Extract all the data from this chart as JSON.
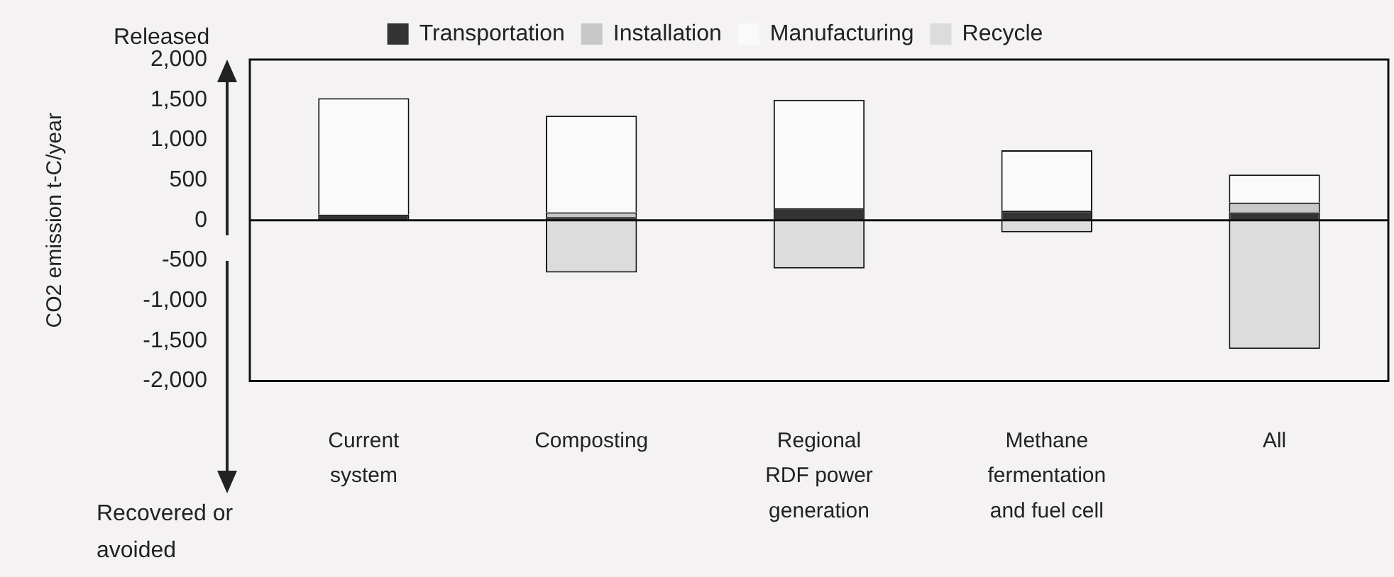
{
  "chart_data": {
    "type": "bar",
    "stacked": true,
    "ylabel": "CO2 emission t-C/year",
    "categories": [
      "Current system",
      "Composting",
      "Regional RDF power generation",
      "Methane fermentation and fuel cell",
      "All"
    ],
    "series": [
      {
        "name": "Transportation",
        "color": "#333333",
        "values": [
          70,
          40,
          150,
          120,
          100
        ]
      },
      {
        "name": "Installation",
        "color": "#c8c8c8",
        "values": [
          0,
          60,
          0,
          0,
          120
        ]
      },
      {
        "name": "Manufacturing",
        "color": "#fafafa",
        "values": [
          1450,
          1200,
          1350,
          750,
          350
        ]
      },
      {
        "name": "Recycle",
        "color": "#dcdcdc",
        "values": [
          0,
          -650,
          -600,
          -150,
          -1600
        ]
      }
    ],
    "ylim": [
      -2000,
      2000
    ],
    "yticks": [
      {
        "value": -2000,
        "label": "-2,000"
      },
      {
        "value": -1500,
        "label": "-1,500"
      },
      {
        "value": -1000,
        "label": "-1,000"
      },
      {
        "value": -500,
        "label": "-500"
      },
      0,
      500,
      {
        "value": 1000,
        "label": "1,000"
      },
      {
        "value": 1500,
        "label": "1,500"
      },
      {
        "value": 2000,
        "label": "2,000"
      }
    ],
    "ref_lines": [
      {
        "axis": "y",
        "value": 0,
        "color": "#111111"
      }
    ],
    "legend": "top",
    "annotations": [
      "Released",
      "Recovered or avoided"
    ]
  }
}
